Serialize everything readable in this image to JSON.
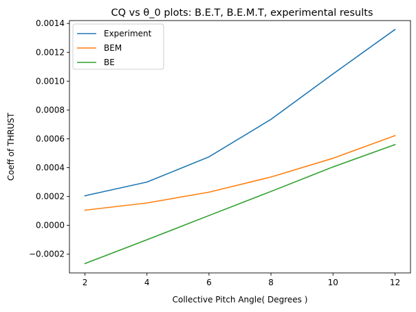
{
  "chart_data": {
    "type": "line",
    "title": "CQ vs θ_0 plots: B.E.T, B.E.M.T, experimental results",
    "xlabel": "Collective Pitch Angle( Degrees )",
    "ylabel": "Coeff of THRUST",
    "x": [
      2,
      4,
      6,
      8,
      10,
      12
    ],
    "xlim": [
      1.5,
      12.5
    ],
    "ylim": [
      -0.00033,
      0.00142
    ],
    "xticks": [
      2,
      4,
      6,
      8,
      10,
      12
    ],
    "yticks": [
      -0.0002,
      0.0,
      0.0002,
      0.0004,
      0.0006,
      0.0008,
      0.001,
      0.0012,
      0.0014
    ],
    "ytick_labels": [
      "−0.0002",
      "0.0000",
      "0.0002",
      "0.0004",
      "0.0006",
      "0.0008",
      "0.0010",
      "0.0012",
      "0.0014"
    ],
    "xtick_labels": [
      "2",
      "4",
      "6",
      "8",
      "10",
      "12"
    ],
    "grid": false,
    "legend_position": "upper-left",
    "series": [
      {
        "name": "Experiment",
        "color": "#1f77b4",
        "values": [
          0.000205,
          0.0003,
          0.000475,
          0.000735,
          0.00105,
          0.001358
        ]
      },
      {
        "name": "BEM",
        "color": "#ff7f0e",
        "values": [
          0.000105,
          0.000155,
          0.00023,
          0.000335,
          0.000465,
          0.000622
        ]
      },
      {
        "name": "BE",
        "color": "#2ca02c",
        "values": [
          -0.000265,
          -0.0001,
          6.8e-05,
          0.000235,
          0.000405,
          0.00056
        ]
      }
    ]
  }
}
